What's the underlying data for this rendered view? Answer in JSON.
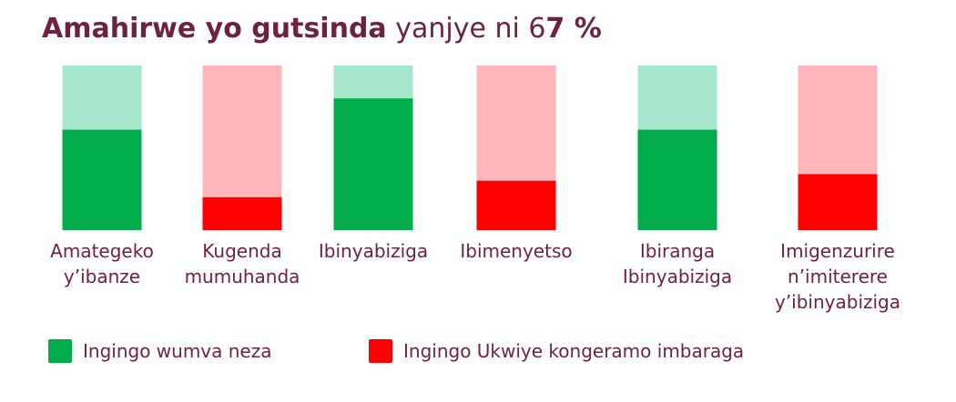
{
  "title": {
    "bold": "Amahirwe yo gutsinda",
    "light": " yanjye ni 6",
    "value_bold": "7 %"
  },
  "colors": {
    "text": "#6d2244",
    "good": "#00ad4a",
    "good_track": "#a6e6cc",
    "weak": "#ff0000",
    "weak_track": "#ffb6ba"
  },
  "legend": [
    {
      "label": "Ingingo wumva neza",
      "status": "good"
    },
    {
      "label": "Ingingo Ukwiye kongeramo imbaraga",
      "status": "weak"
    }
  ],
  "chart_data": {
    "type": "bar",
    "ylim": [
      0,
      100
    ],
    "categories": [
      [
        "Amategeko",
        "y’ibanze"
      ],
      [
        "Kugenda",
        "mumuhanda"
      ],
      [
        "Ibinyabiziga"
      ],
      [
        "Ibimenyetso"
      ],
      [
        "Ibiranga",
        "Ibinyabiziga"
      ],
      [
        "Imigenzurire",
        "n’imiterere",
        "y’ibinyabiziga"
      ]
    ],
    "values": [
      61,
      20,
      80,
      30,
      61,
      34
    ],
    "status": [
      "good",
      "weak",
      "good",
      "weak",
      "good",
      "weak"
    ]
  }
}
